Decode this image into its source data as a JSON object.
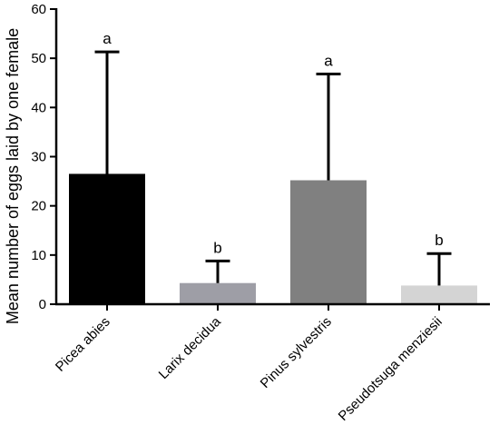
{
  "chart_data": {
    "type": "bar",
    "title": "",
    "xlabel": "",
    "ylabel": "Mean number of eggs laid by one female",
    "ylim": [
      0,
      60
    ],
    "yticks": [
      0,
      10,
      20,
      30,
      40,
      50,
      60
    ],
    "categories": [
      "Picea abies",
      "Larix decidua",
      "Pinus sylvestris",
      "Pseudotsuga menziesii"
    ],
    "values": [
      26.5,
      4.3,
      25.2,
      3.8
    ],
    "error_upper": [
      51.3,
      8.8,
      46.8,
      10.3
    ],
    "significance_letters": [
      "a",
      "b",
      "a",
      "b"
    ],
    "bar_colors": [
      "#000000",
      "#9e9ea6",
      "#808080",
      "#d4d4d4"
    ],
    "grid": false,
    "legend": "none",
    "xtick_label_rotation_deg": -45
  }
}
